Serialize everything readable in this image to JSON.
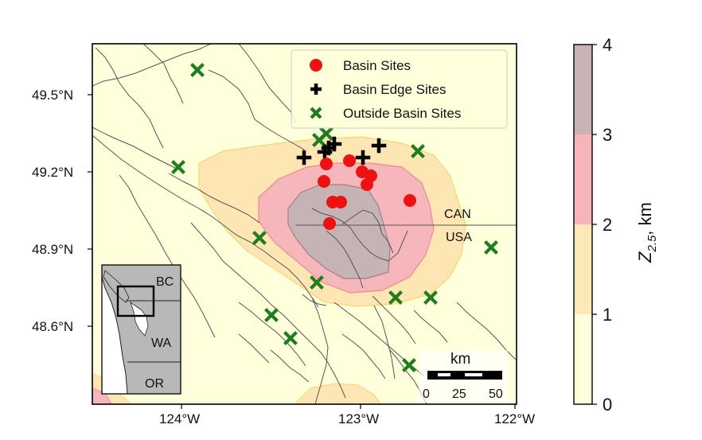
{
  "map": {
    "lon_ticks": [
      "124°W",
      "123°W",
      "122°W"
    ],
    "lat_ticks": [
      "49.5°N",
      "49.2°N",
      "48.9°N",
      "48.6°N"
    ],
    "border_labels": {
      "north": "CAN",
      "south": "USA"
    },
    "legend": [
      {
        "label": "Basin Sites",
        "marker": "circle",
        "color": "#ee1111"
      },
      {
        "label": "Basin Edge Sites",
        "marker": "plus",
        "color": "#000000"
      },
      {
        "label": "Outside Basin Sites",
        "marker": "x",
        "color": "#1e7d1e"
      }
    ],
    "inset_labels": {
      "bc": "BC",
      "wa": "WA",
      "or": "OR"
    },
    "scalebar": {
      "title": "km",
      "labels": [
        "0",
        "25",
        "50"
      ]
    },
    "colorbar": {
      "label": "Z",
      "label_sub": "2.5",
      "label_unit": ", km",
      "ticks": [
        "0",
        "1",
        "2",
        "3",
        "4"
      ],
      "bands": [
        {
          "from": 0,
          "to": 1,
          "color": "#fefed8"
        },
        {
          "from": 1,
          "to": 2,
          "color": "#fde8b8"
        },
        {
          "from": 2,
          "to": 3,
          "color": "#f6b5b9"
        },
        {
          "from": 3,
          "to": 4,
          "color": "#c8b4b6"
        }
      ]
    },
    "colors": {
      "background": "#ffffdc",
      "contour1": "#fde6b4",
      "contour2": "#f6b7bc",
      "contour3": "#c6b3b5",
      "coast": "#555555",
      "basin_site": "#ee1111",
      "edge_site": "#000000",
      "outside_site": "#1e7d1e"
    }
  }
}
